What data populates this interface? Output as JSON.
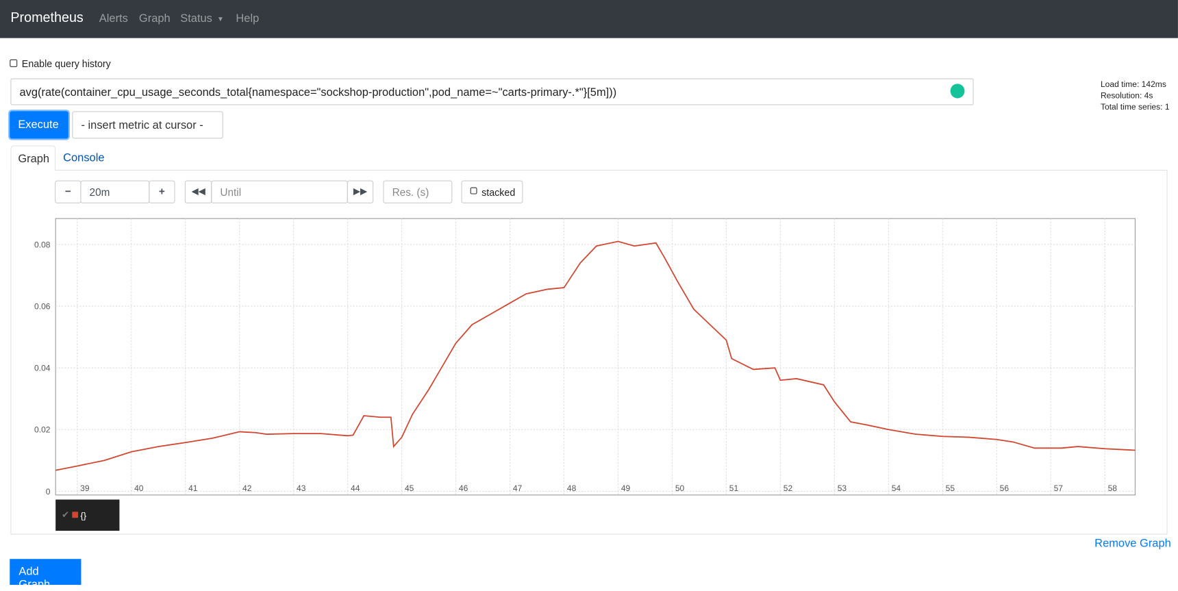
{
  "nav": {
    "brand": "Prometheus",
    "links": [
      "Alerts",
      "Graph",
      "Status",
      "Help"
    ]
  },
  "query_history": "Enable query history",
  "expression": "avg(rate(container_cpu_usage_seconds_total{namespace=\"sockshop-production\",pod_name=~\"carts-primary-.*\"}[5m]))",
  "stats": [
    "Load time: 142ms",
    "Resolution: 4s",
    "Total time series: 1"
  ],
  "execute": "Execute",
  "metric_select": "- insert metric at cursor -",
  "tabs": [
    "Graph",
    "Console"
  ],
  "controls": {
    "range": "20m",
    "until": "Until",
    "resolution": "Res. (s)",
    "stacked": "stacked"
  },
  "remove_graph": "Remove Graph",
  "add_graph": "Add Graph",
  "chart_data": {
    "type": "line",
    "x": [
      38.6,
      39.0,
      39.5,
      40.0,
      40.5,
      41.0,
      41.5,
      42.0,
      42.3,
      42.5,
      43.0,
      43.5,
      44.0,
      44.1,
      44.3,
      44.6,
      44.8,
      44.85,
      45.0,
      45.2,
      45.5,
      45.8,
      46.0,
      46.3,
      46.6,
      47.0,
      47.3,
      47.7,
      48.0,
      48.3,
      48.6,
      49.0,
      49.3,
      49.7,
      49.85,
      50.1,
      50.4,
      50.7,
      51.0,
      51.1,
      51.5,
      51.9,
      52.0,
      52.3,
      52.8,
      53.0,
      53.3,
      53.6,
      54.0,
      54.5,
      55.0,
      55.5,
      56.0,
      56.3,
      56.7,
      57.2,
      57.5,
      58.0,
      58.56
    ],
    "series": [
      {
        "name": "{}",
        "color": "#d2452e",
        "values": [
          0.0068,
          0.0082,
          0.01,
          0.0128,
          0.0145,
          0.0158,
          0.0172,
          0.0193,
          0.019,
          0.0185,
          0.0187,
          0.0187,
          0.018,
          0.0182,
          0.0245,
          0.024,
          0.024,
          0.0145,
          0.0175,
          0.025,
          0.033,
          0.042,
          0.048,
          0.054,
          0.057,
          0.061,
          0.064,
          0.0655,
          0.066,
          0.074,
          0.0795,
          0.081,
          0.0795,
          0.0805,
          0.076,
          0.068,
          0.059,
          0.054,
          0.049,
          0.043,
          0.0395,
          0.04,
          0.036,
          0.0365,
          0.0345,
          0.029,
          0.0225,
          0.0215,
          0.02,
          0.0185,
          0.0178,
          0.0175,
          0.0168,
          0.016,
          0.014,
          0.014,
          0.0145,
          0.0138,
          0.0133
        ]
      }
    ],
    "xlim": [
      38.6,
      58.56
    ],
    "xticks": [
      39,
      40,
      41,
      42,
      43,
      44,
      45,
      46,
      47,
      48,
      49,
      50,
      51,
      52,
      53,
      54,
      55,
      56,
      57,
      58
    ],
    "ylim": [
      -0.0012,
      0.0884
    ],
    "yticks": [
      0,
      0.02,
      0.04,
      0.06,
      0.08
    ],
    "grid": true
  }
}
